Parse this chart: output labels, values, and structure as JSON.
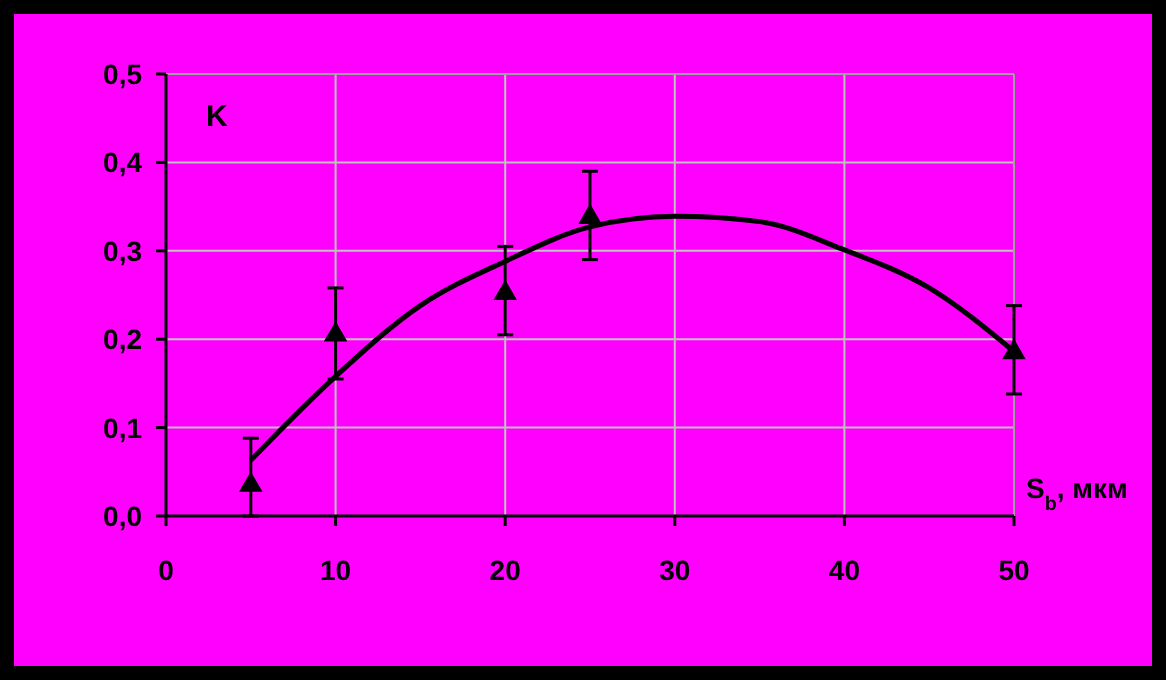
{
  "chart_data": {
    "type": "scatter",
    "xlabel": "S$_{b}$, мкм",
    "ylabel": "K",
    "xlim": [
      0,
      50
    ],
    "xticks": [
      0,
      10,
      20,
      30,
      40,
      50
    ],
    "ylim": [
      0,
      0.5
    ],
    "yticks": [
      {
        "value": 0,
        "label": "0,0"
      },
      {
        "value": 0.1,
        "label": "0,1"
      },
      {
        "value": 0.2,
        "label": "0,2"
      },
      {
        "value": 0.3,
        "label": "0,3"
      },
      {
        "value": 0.4,
        "label": "0,4"
      },
      {
        "value": 0.5,
        "label": "0,5"
      }
    ],
    "grid": true,
    "series": [
      {
        "type": "line",
        "color": "#000000",
        "marker": "none",
        "line_style": "solid",
        "x": [
          5,
          10,
          15,
          20,
          25,
          30,
          35,
          40,
          45,
          50
        ],
        "values": [
          0.063,
          0.158,
          0.238,
          0.288,
          0.327,
          0.339,
          0.333,
          0.301,
          0.258,
          0.186
        ]
      },
      {
        "color": "#000000",
        "marker": "triangle",
        "x": [
          5,
          10,
          20,
          25,
          50
        ],
        "values": [
          0.035,
          0.205,
          0.252,
          0.338,
          0.185
        ],
        "errors": [
          [
            0,
            0.088
          ],
          [
            0.155,
            0.258
          ],
          [
            0.205,
            0.305
          ],
          [
            0.29,
            0.39
          ],
          [
            0.138,
            0.238
          ]
        ]
      }
    ]
  }
}
